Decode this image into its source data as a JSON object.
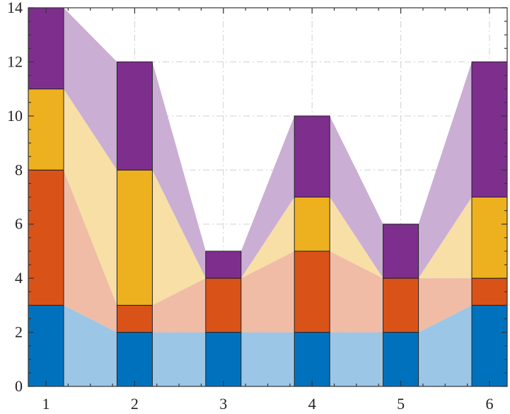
{
  "chart_data": {
    "type": "bar",
    "stacked": true,
    "connected_fill_between_bars": true,
    "categories": [
      "1",
      "2",
      "3",
      "4",
      "5",
      "6"
    ],
    "series": [
      {
        "values": [
          3,
          2,
          2,
          2,
          2,
          3
        ],
        "color": "#0072BD",
        "fill_color": "#9CC6E6"
      },
      {
        "values": [
          5,
          1,
          2,
          3,
          2,
          1
        ],
        "color": "#D95319",
        "fill_color": "#F0BCA6"
      },
      {
        "values": [
          3,
          5,
          0,
          2,
          0,
          3
        ],
        "color": "#EDB120",
        "fill_color": "#F8DFA6"
      },
      {
        "values": [
          3,
          4,
          1,
          3,
          2,
          5
        ],
        "color": "#7E2F8E",
        "fill_color": "#CBAED4"
      }
    ],
    "xlim": [
      1,
      6
    ],
    "ylim": [
      0,
      14
    ],
    "yticks": [
      "0",
      "2",
      "4",
      "6",
      "8",
      "10",
      "12",
      "14"
    ],
    "grid": true,
    "legend": "none"
  }
}
